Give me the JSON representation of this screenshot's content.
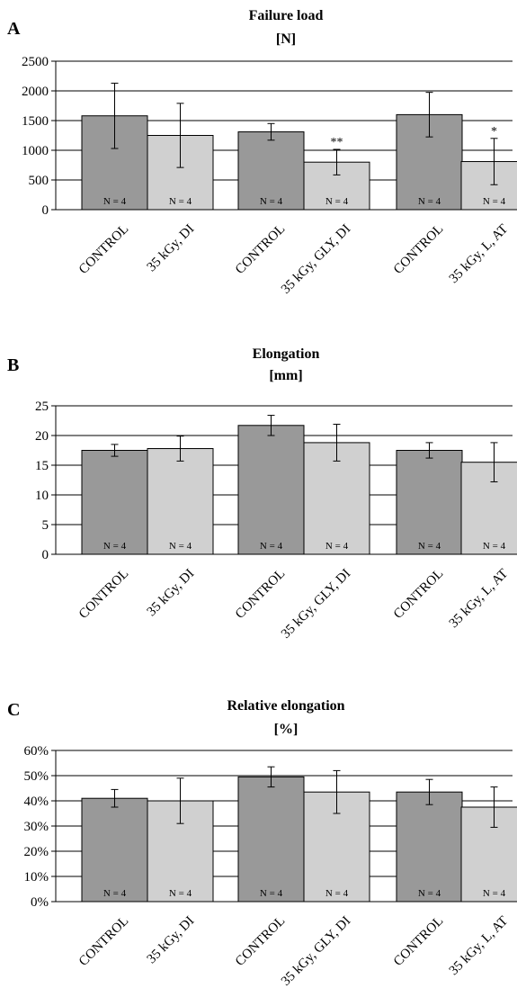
{
  "colors": {
    "dark_bar": "#999999",
    "light_bar": "#d0d0d0",
    "grid": "#000000"
  },
  "chart_data": [
    {
      "panel": "A",
      "type": "bar",
      "title": "Failure load",
      "unit": "[N]",
      "categories": [
        "CONTROL",
        "35 kGy, DI",
        "CONTROL",
        "35 kGy, GLY, DI",
        "CONTROL",
        "35 kGy, L, AT"
      ],
      "values": [
        1580,
        1250,
        1310,
        800,
        1600,
        810
      ],
      "errors": [
        550,
        540,
        140,
        215,
        375,
        390
      ],
      "n_labels": [
        "N = 4",
        "N = 4",
        "N = 4",
        "N = 4",
        "N = 4",
        "N = 4"
      ],
      "significance": [
        "",
        "",
        "",
        "**",
        "",
        "*"
      ],
      "ylim": [
        0,
        2500
      ],
      "yticks": [
        0,
        500,
        1000,
        1500,
        2000,
        2500
      ],
      "ytick_labels": [
        "0",
        "500",
        "1000",
        "1500",
        "2000",
        "2500"
      ],
      "grid": true
    },
    {
      "panel": "B",
      "type": "bar",
      "title": "Elongation",
      "unit": "[mm]",
      "categories": [
        "CONTROL",
        "35 kGy, DI",
        "CONTROL",
        "35 kGy, GLY, DI",
        "CONTROL",
        "35 kGy, L, AT"
      ],
      "values": [
        17.5,
        17.8,
        21.7,
        18.8,
        17.5,
        15.5
      ],
      "errors": [
        1.0,
        2.1,
        1.7,
        3.1,
        1.3,
        3.3
      ],
      "n_labels": [
        "N = 4",
        "N = 4",
        "N = 4",
        "N = 4",
        "N = 4",
        "N = 4"
      ],
      "significance": [
        "",
        "",
        "",
        "",
        "",
        ""
      ],
      "ylim": [
        0,
        25
      ],
      "yticks": [
        0,
        5,
        10,
        15,
        20,
        25
      ],
      "ytick_labels": [
        "0",
        "5",
        "10",
        "15",
        "20",
        "25"
      ],
      "grid": true
    },
    {
      "panel": "C",
      "type": "bar",
      "title": "Relative elongation",
      "unit": "[%]",
      "categories": [
        "CONTROL",
        "35 kGy, DI",
        "CONTROL",
        "35 kGy, GLY, DI",
        "CONTROL",
        "35 kGy, L, AT"
      ],
      "values": [
        41,
        40,
        49.5,
        43.5,
        43.5,
        37.5
      ],
      "errors": [
        3.5,
        9,
        4,
        8.5,
        5,
        8
      ],
      "n_labels": [
        "N = 4",
        "N = 4",
        "N = 4",
        "N = 4",
        "N = 4",
        "N = 4"
      ],
      "significance": [
        "",
        "",
        "",
        "",
        "",
        ""
      ],
      "ylim": [
        0,
        60
      ],
      "yticks": [
        0,
        10,
        20,
        30,
        40,
        50,
        60
      ],
      "ytick_labels": [
        "0%",
        "10%",
        "20%",
        "30%",
        "40%",
        "50%",
        "60%"
      ],
      "grid": true
    }
  ]
}
